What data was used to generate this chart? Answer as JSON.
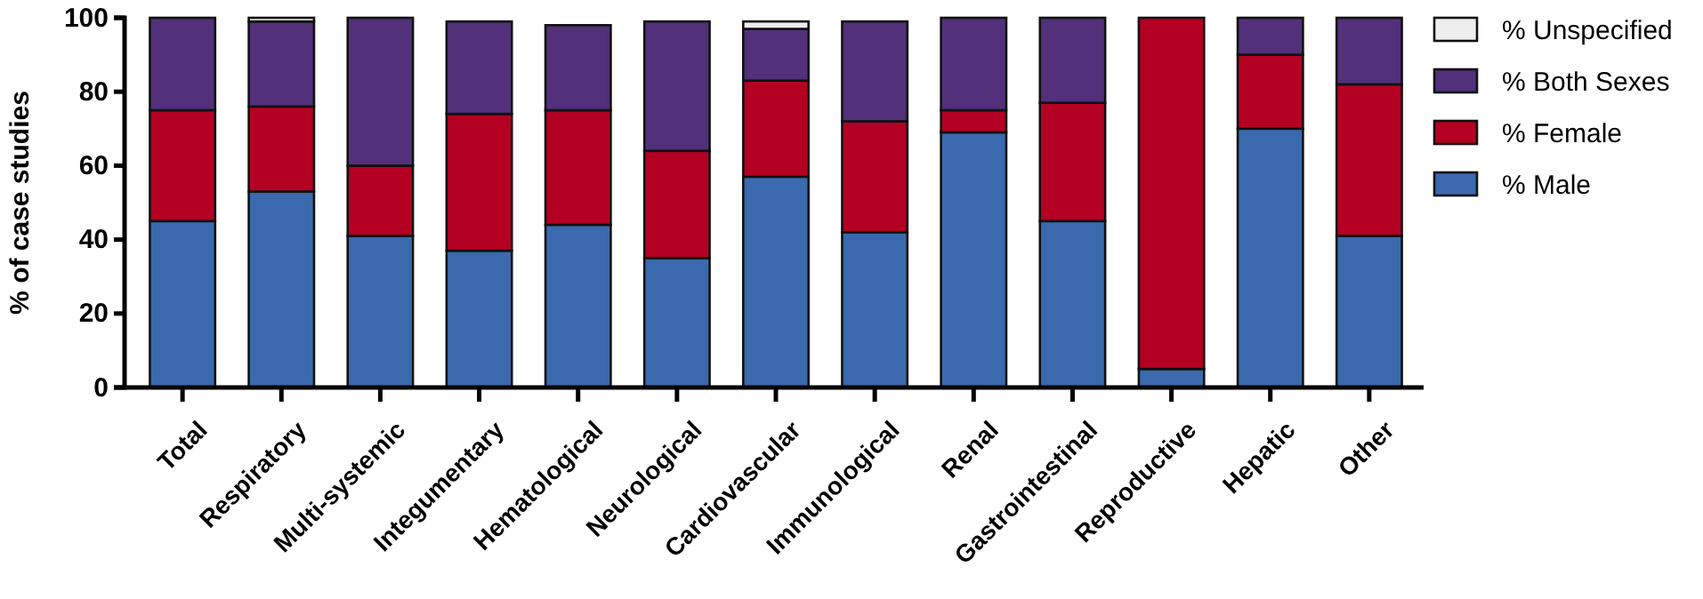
{
  "chart_data": {
    "type": "bar",
    "stacked": true,
    "ylabel": "% of case studies",
    "categories": [
      "Total",
      "Respiratory",
      "Multi-systemic",
      "Integumentary",
      "Hematological",
      "Neurological",
      "Cardiovascular",
      "Immunological",
      "Renal",
      "Gastrointestinal",
      "Reproductive",
      "Hepatic",
      "Other"
    ],
    "series": [
      {
        "name": "% Male",
        "color": "#3a6aad",
        "values": [
          45,
          53,
          41,
          37,
          44,
          35,
          57,
          42,
          69,
          45,
          5,
          70,
          41
        ]
      },
      {
        "name": "% Female",
        "color": "#b40023",
        "values": [
          30,
          23,
          19,
          37,
          31,
          29,
          26,
          30,
          6,
          32,
          95,
          20,
          41
        ]
      },
      {
        "name": "% Both Sexes",
        "color": "#52307a",
        "values": [
          25,
          23,
          40,
          25,
          23,
          35,
          14,
          27,
          25,
          23,
          0,
          10,
          18
        ]
      },
      {
        "name": "% Unspecified",
        "color": "#eeeeee",
        "values": [
          0,
          1,
          0,
          0,
          0,
          0,
          2,
          0,
          0,
          0,
          0,
          0,
          0
        ]
      }
    ],
    "ylim": [
      0,
      100
    ],
    "yticks": [
      0,
      20,
      40,
      60,
      80,
      100
    ],
    "grid": false,
    "legend": "top right"
  }
}
